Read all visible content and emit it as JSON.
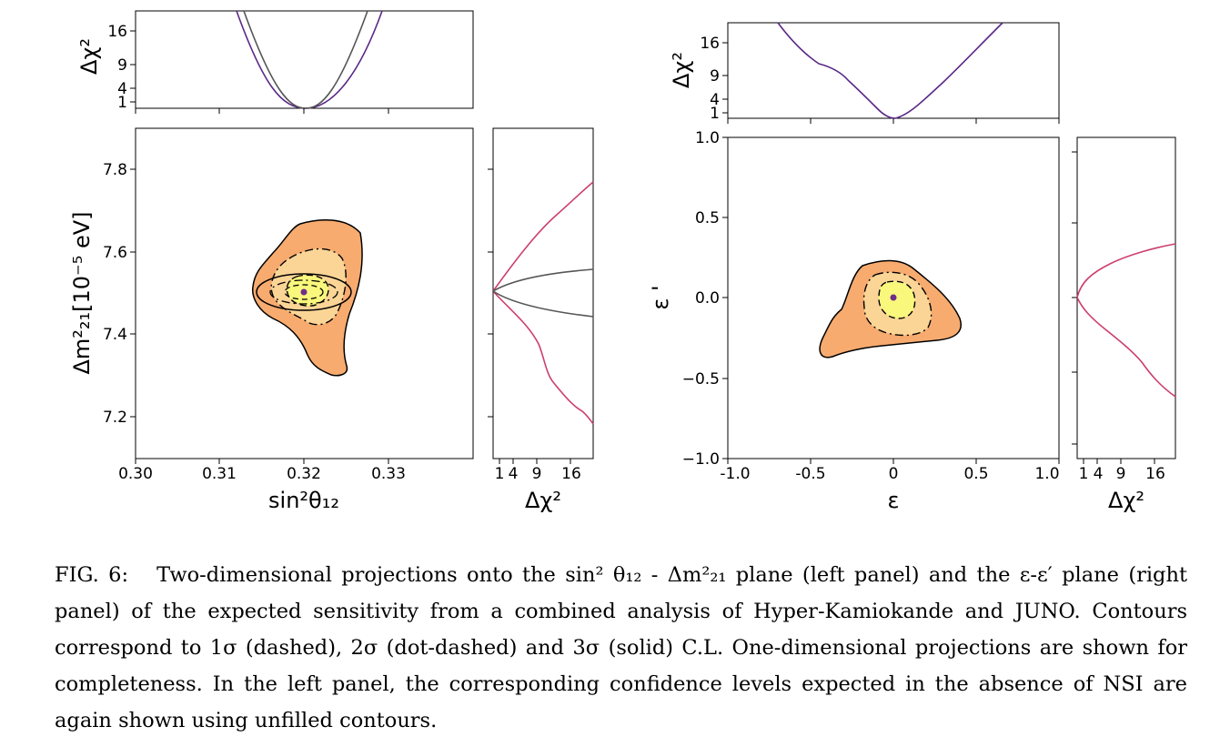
{
  "figure_label": "FIG. 6:",
  "caption_text": "Two-dimensional projections onto the sin² θ₁₂ - Δm²₂₁ plane (left panel) and the ε-ε′ plane (right panel) of the expected sensitivity from a combined analysis of Hyper-Kamiokande and JUNO. Contours correspond to 1σ (dashed), 2σ (dot-dashed) and 3σ (solid) C.L. One-dimensional projections are shown for completeness. In the left panel, the corresponding confidence levels expected in the absence of NSI are again shown using unfilled contours.",
  "colors": {
    "contour_3sigma": "#f7ab6f",
    "contour_2sigma": "#fbd596",
    "contour_1sigma": "#f9f77c",
    "best_fit": "#6e2f88",
    "profile_purple": "#5a2886",
    "profile_crimson": "#cc3f6c",
    "no_nsi": "#555555"
  },
  "chart_data": [
    {
      "panel": "left",
      "type": "contour",
      "xlabel": "sin²θ₁₂",
      "ylabel": "Δm²₂₁[10⁻⁵ eV]",
      "xlim": [
        0.3,
        0.34
      ],
      "ylim": [
        7.1,
        7.9
      ],
      "x_ticks": [
        "0.30",
        "0.31",
        "0.32",
        "0.33"
      ],
      "y_ticks": [
        "7.2",
        "7.4",
        "7.6",
        "7.8"
      ],
      "best_fit": {
        "x": 0.32,
        "y": 7.5
      },
      "top_profile": {
        "ylabel": "Δχ²",
        "y_ticks": [
          "1",
          "4",
          "9",
          "16"
        ]
      },
      "right_profile": {
        "xlabel": "Δχ²",
        "x_ticks": [
          "1",
          "4",
          "9",
          "16"
        ]
      }
    },
    {
      "panel": "right",
      "type": "contour",
      "xlabel": "ε",
      "ylabel": "ε '",
      "xlim": [
        -1.0,
        1.0
      ],
      "ylim": [
        -1.0,
        1.0
      ],
      "x_ticks": [
        "-1.0",
        "-0.5",
        "0",
        "0.5",
        "1.0"
      ],
      "y_ticks": [
        "1.0",
        "0.5",
        "0.0",
        "−0.5",
        "−1.0"
      ],
      "best_fit": {
        "x": 0.0,
        "y": 0.0
      },
      "top_profile": {
        "ylabel": "Δχ²",
        "y_ticks": [
          "1",
          "4",
          "9",
          "16"
        ]
      },
      "right_profile": {
        "xlabel": "Δχ²",
        "x_ticks": [
          "1",
          "4",
          "9",
          "16"
        ]
      }
    }
  ]
}
